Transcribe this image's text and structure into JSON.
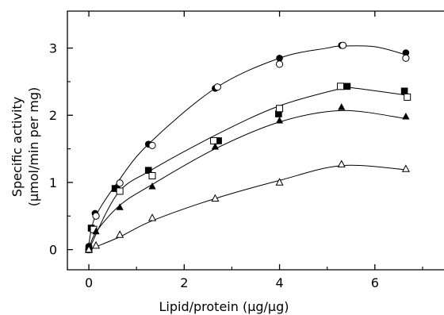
{
  "chart_data": {
    "type": "scatter",
    "title": "",
    "xlabel": "Lipid/protein (μg/μg)",
    "ylabel_line1": "Specific activity",
    "ylabel_line2": "(μmol/min per mg)",
    "xlim": [
      -0.45,
      7.45
    ],
    "ylim": [
      -0.3,
      3.55
    ],
    "xticks": [
      0,
      2,
      4,
      6
    ],
    "yticks": [
      0,
      1,
      2,
      3
    ],
    "xtick_labels": [
      "0",
      "2",
      "4",
      "6"
    ],
    "ytick_labels": [
      "0",
      "1",
      "2",
      "3"
    ],
    "grid": false,
    "series": [
      {
        "marker": "filled-circle",
        "points": [
          [
            0.0,
            0.05
          ],
          [
            0.13,
            0.54
          ],
          [
            0.6,
            0.9
          ],
          [
            1.25,
            1.57
          ],
          [
            2.65,
            2.4
          ],
          [
            4.0,
            2.85
          ],
          [
            5.3,
            3.04
          ],
          [
            6.65,
            2.93
          ]
        ],
        "curve": [
          [
            0.0,
            0.08
          ],
          [
            0.13,
            0.48
          ],
          [
            0.6,
            1.0
          ],
          [
            1.25,
            1.57
          ],
          [
            2.65,
            2.4
          ],
          [
            4.0,
            2.85
          ],
          [
            5.0,
            3.0
          ],
          [
            5.3,
            3.03
          ],
          [
            6.0,
            3.02
          ],
          [
            6.65,
            2.9
          ]
        ]
      },
      {
        "marker": "open-circle",
        "points": [
          [
            0.0,
            0.0
          ],
          [
            0.15,
            0.5
          ],
          [
            0.65,
            0.99
          ],
          [
            1.33,
            1.55
          ],
          [
            2.7,
            2.42
          ],
          [
            4.0,
            2.76
          ],
          [
            5.33,
            3.04
          ],
          [
            6.65,
            2.85
          ]
        ]
      },
      {
        "marker": "filled-square",
        "points": [
          [
            0.0,
            0.0
          ],
          [
            0.05,
            0.32
          ],
          [
            0.55,
            0.91
          ],
          [
            1.25,
            1.18
          ],
          [
            2.72,
            1.62
          ],
          [
            3.98,
            2.02
          ],
          [
            5.42,
            2.43
          ],
          [
            6.62,
            2.36
          ]
        ],
        "curve": [
          [
            0.0,
            0.0
          ],
          [
            0.6,
            0.83
          ],
          [
            1.3,
            1.18
          ],
          [
            2.7,
            1.72
          ],
          [
            4.0,
            2.14
          ],
          [
            5.3,
            2.4
          ],
          [
            5.5,
            2.41
          ],
          [
            6.65,
            2.3
          ]
        ]
      },
      {
        "marker": "open-square",
        "points": [
          [
            0.1,
            0.3
          ],
          [
            0.65,
            0.87
          ],
          [
            1.33,
            1.1
          ],
          [
            2.62,
            1.62
          ],
          [
            4.0,
            2.1
          ],
          [
            5.28,
            2.43
          ],
          [
            6.68,
            2.27
          ]
        ]
      },
      {
        "marker": "filled-triangle",
        "points": [
          [
            0.0,
            0.0
          ],
          [
            0.15,
            0.27
          ],
          [
            0.65,
            0.63
          ],
          [
            1.33,
            0.94
          ],
          [
            2.65,
            1.53
          ],
          [
            4.0,
            1.92
          ],
          [
            5.3,
            2.12
          ],
          [
            6.65,
            1.98
          ]
        ],
        "curve": [
          [
            0.0,
            0.0
          ],
          [
            0.15,
            0.26
          ],
          [
            0.65,
            0.66
          ],
          [
            1.33,
            0.97
          ],
          [
            2.65,
            1.5
          ],
          [
            4.0,
            1.9
          ],
          [
            5.3,
            2.07
          ],
          [
            6.65,
            1.95
          ]
        ]
      },
      {
        "marker": "open-triangle",
        "points": [
          [
            0.0,
            0.0
          ],
          [
            0.15,
            0.06
          ],
          [
            0.65,
            0.22
          ],
          [
            1.33,
            0.47
          ],
          [
            2.65,
            0.76
          ],
          [
            4.0,
            1.0
          ],
          [
            5.3,
            1.27
          ],
          [
            6.65,
            1.2
          ]
        ],
        "curve": [
          [
            0.0,
            0.0
          ],
          [
            0.65,
            0.19
          ],
          [
            1.33,
            0.43
          ],
          [
            2.65,
            0.76
          ],
          [
            4.0,
            1.03
          ],
          [
            5.3,
            1.25
          ],
          [
            6.65,
            1.19
          ]
        ]
      }
    ]
  }
}
